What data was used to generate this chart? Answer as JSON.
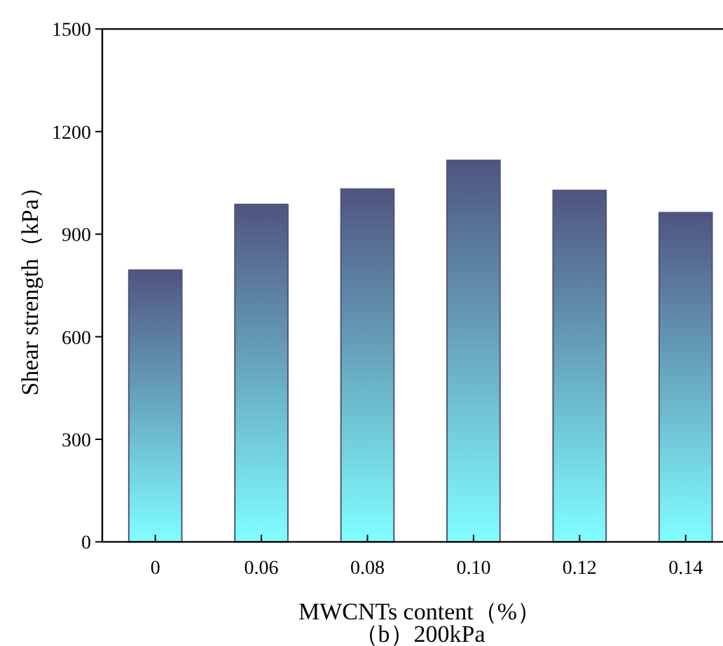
{
  "chart_data": {
    "type": "bar",
    "xlabel": "MWCNTs content（%）",
    "ylabel": "Shear strength（kPa）",
    "categories": [
      "0",
      "0.06",
      "0.08",
      "0.10",
      "0.12",
      "0.14"
    ],
    "series": [
      {
        "color": "#50547f",
        "values": [
          795,
          987,
          1032,
          1116,
          1028,
          963
        ]
      }
    ],
    "ylim": [
      0,
      1500
    ],
    "yticks": [
      0,
      300,
      600,
      900,
      1200,
      1500
    ],
    "grid": false,
    "annotations": [
      "（b）200kPa"
    ]
  }
}
